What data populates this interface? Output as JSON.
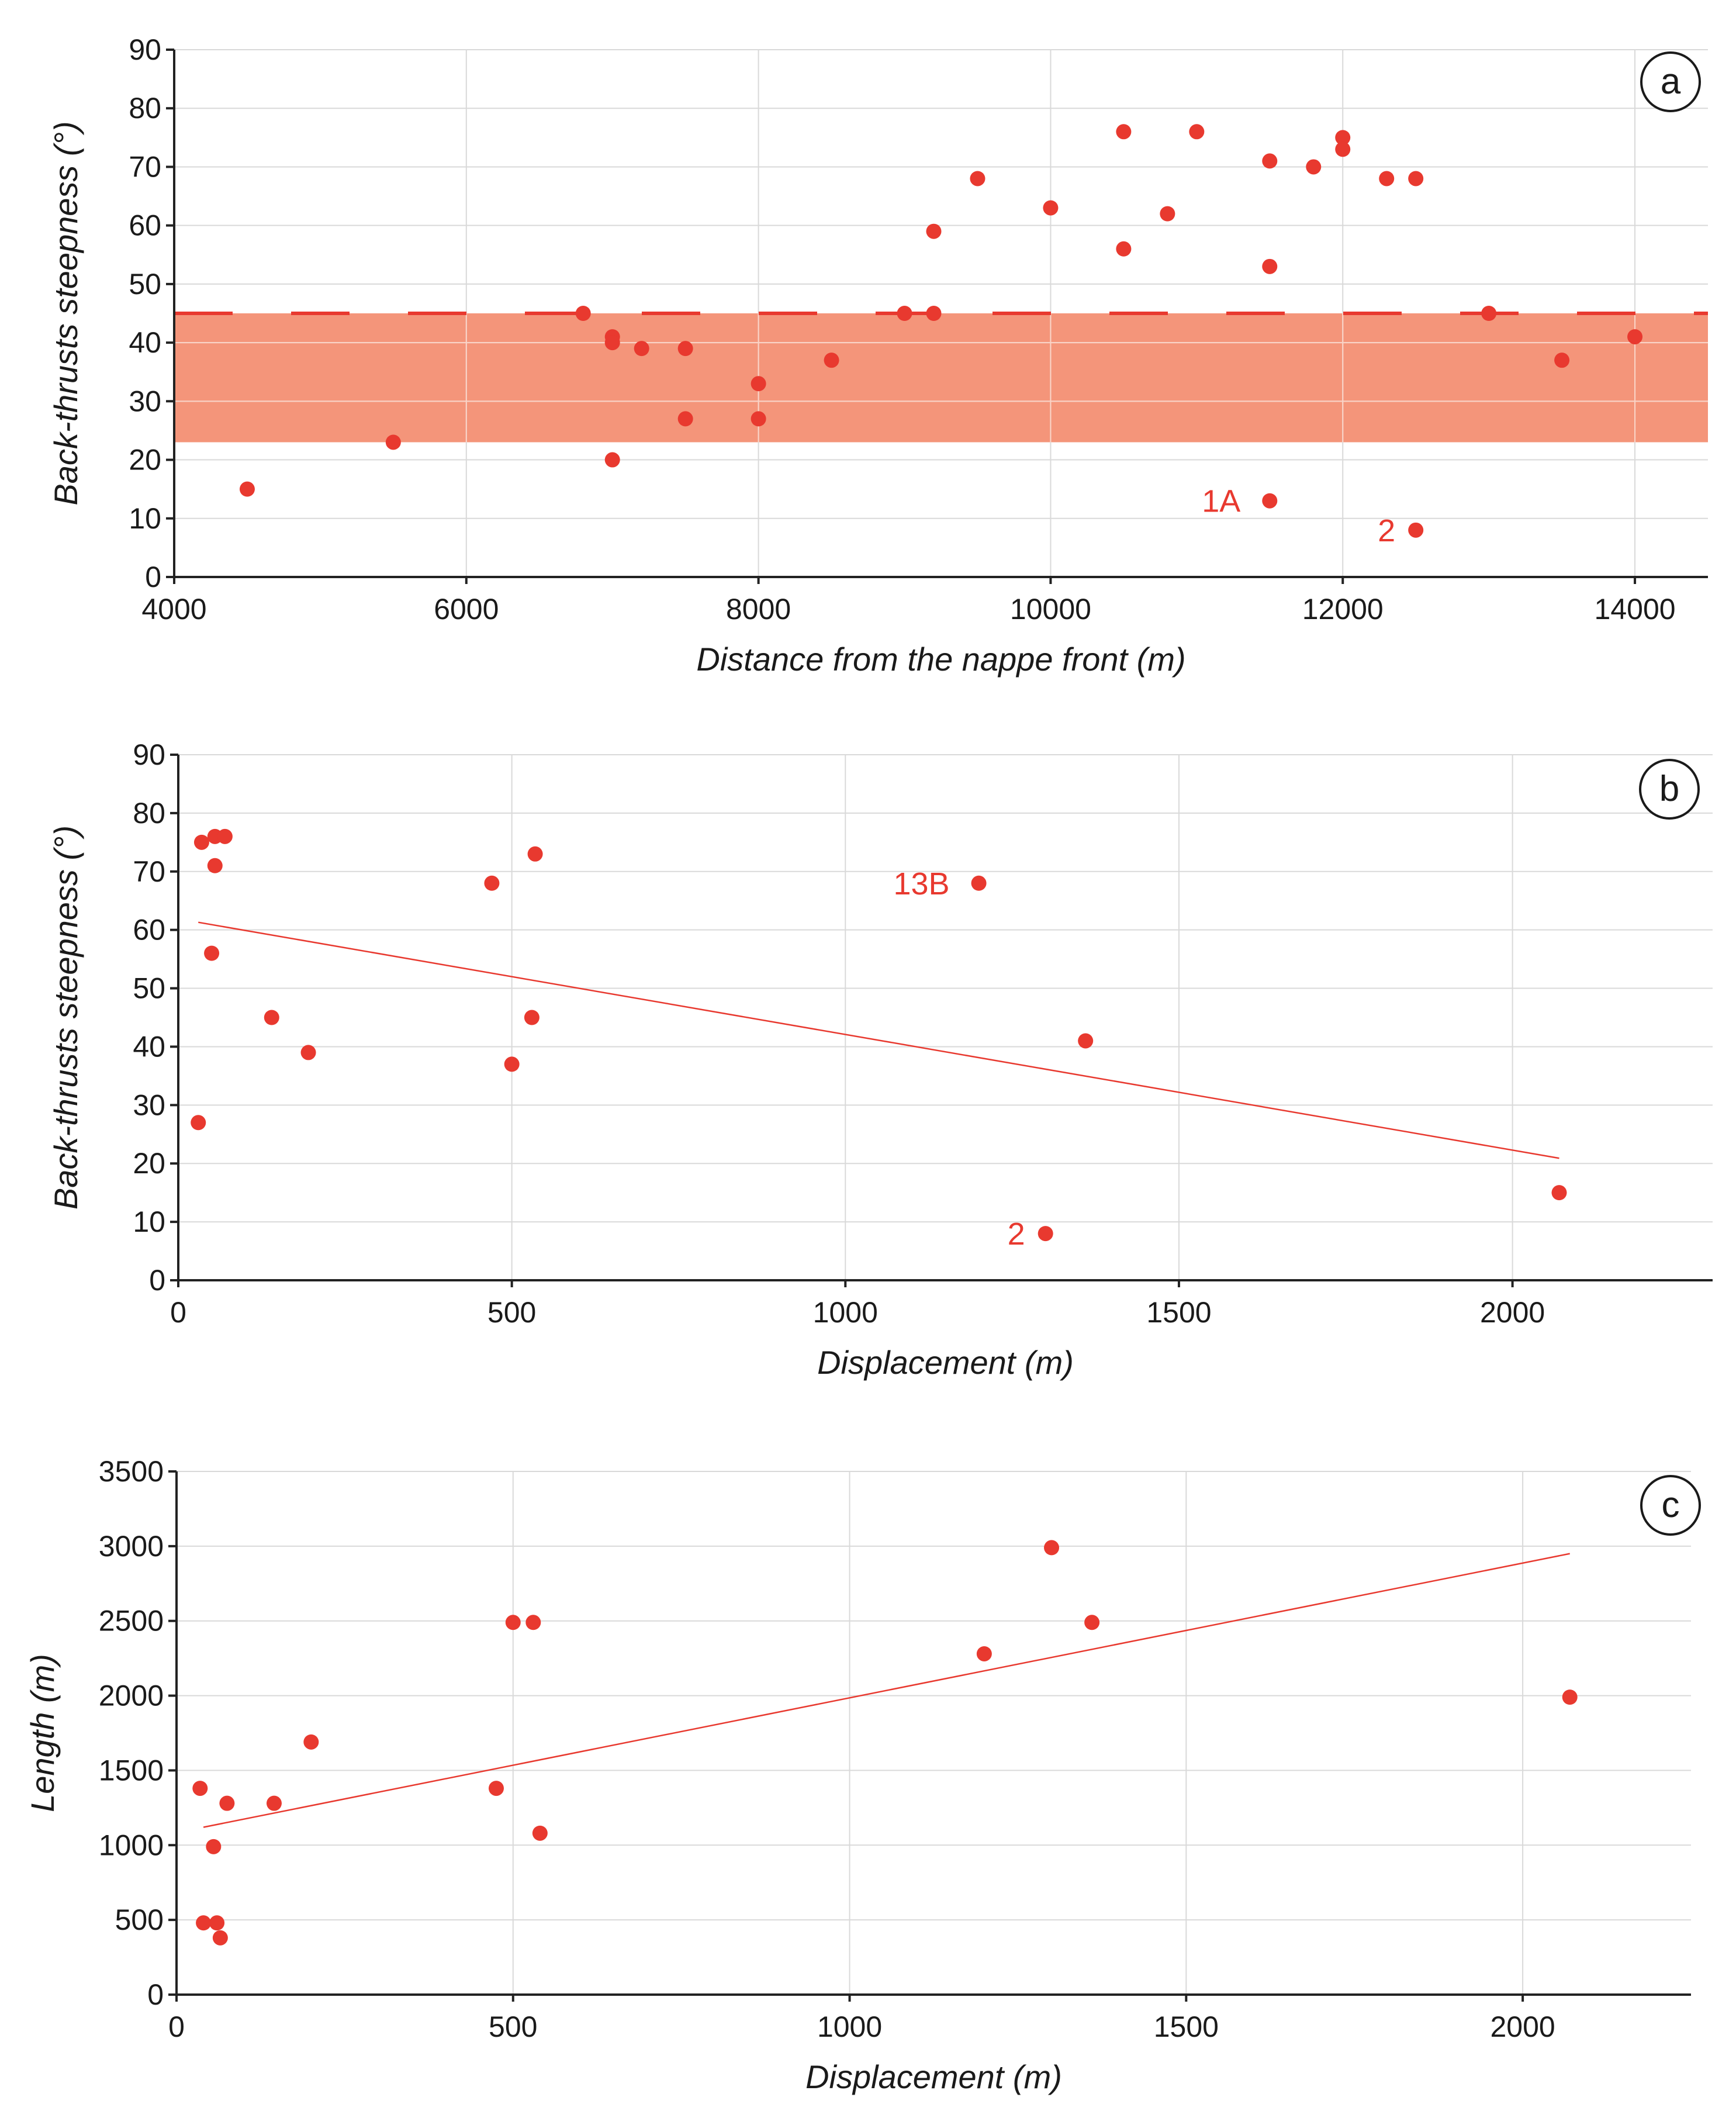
{
  "chart_data": [
    {
      "panel": "a",
      "type": "scatter",
      "xlabel": "Distance from the nappe front (m)",
      "ylabel": "Back-thrusts steepness (°)",
      "xlim": [
        4000,
        14500
      ],
      "ylim": [
        0,
        90
      ],
      "xticks": [
        4000,
        6000,
        8000,
        10000,
        12000,
        14000
      ],
      "yticks": [
        0,
        10,
        20,
        30,
        40,
        50,
        60,
        70,
        80,
        90
      ],
      "grid": true,
      "band": {
        "from": 23,
        "to": 45,
        "color": "#f4957a"
      },
      "threshold_line": {
        "y": 45,
        "style": "dashed",
        "color": "#e8392f"
      },
      "point_color": "#e8392f",
      "points": [
        [
          4500,
          15
        ],
        [
          5500,
          23
        ],
        [
          6800,
          45
        ],
        [
          7000,
          41
        ],
        [
          7000,
          40
        ],
        [
          7000,
          20
        ],
        [
          7200,
          39
        ],
        [
          7500,
          39
        ],
        [
          7500,
          27
        ],
        [
          8000,
          33
        ],
        [
          8000,
          27
        ],
        [
          8500,
          37
        ],
        [
          9000,
          45
        ],
        [
          9200,
          45
        ],
        [
          9200,
          59
        ],
        [
          9500,
          68
        ],
        [
          10000,
          63
        ],
        [
          10500,
          76
        ],
        [
          10500,
          56
        ],
        [
          10800,
          62
        ],
        [
          11000,
          76
        ],
        [
          11500,
          71
        ],
        [
          11500,
          53
        ],
        [
          11500,
          13
        ],
        [
          11800,
          70
        ],
        [
          12000,
          75
        ],
        [
          12000,
          73
        ],
        [
          12300,
          68
        ],
        [
          12500,
          68
        ],
        [
          12500,
          8
        ],
        [
          13000,
          45
        ],
        [
          13500,
          37
        ],
        [
          14000,
          41
        ]
      ],
      "annotations": [
        {
          "text": "1A",
          "x": 11500,
          "y": 13
        },
        {
          "text": "2",
          "x": 12500,
          "y": 8
        }
      ]
    },
    {
      "panel": "b",
      "type": "scatter",
      "xlabel": "Displacement (m)",
      "ylabel": "Back-thrusts steepness (°)",
      "xlim": [
        0,
        2300
      ],
      "ylim": [
        0,
        90
      ],
      "xticks": [
        0,
        500,
        1000,
        1500,
        2000
      ],
      "yticks": [
        0,
        10,
        20,
        30,
        40,
        50,
        60,
        70,
        80,
        90
      ],
      "grid": true,
      "point_color": "#e8392f",
      "points": [
        [
          30,
          27
        ],
        [
          35,
          75
        ],
        [
          50,
          56
        ],
        [
          55,
          76
        ],
        [
          55,
          71
        ],
        [
          70,
          76
        ],
        [
          140,
          45
        ],
        [
          195,
          39
        ],
        [
          470,
          68
        ],
        [
          500,
          37
        ],
        [
          530,
          45
        ],
        [
          535,
          73
        ],
        [
          1200,
          68
        ],
        [
          1300,
          8
        ],
        [
          1360,
          41
        ],
        [
          2070,
          15
        ]
      ],
      "trendline": {
        "x": [
          30,
          2070
        ],
        "y": [
          61.3,
          20.9
        ]
      },
      "annotations": [
        {
          "text": "13B",
          "x": 1200,
          "y": 68
        },
        {
          "text": "2",
          "x": 1300,
          "y": 8
        }
      ]
    },
    {
      "panel": "c",
      "type": "scatter",
      "xlabel": "Displacement (m)",
      "ylabel": "Length (m)",
      "xlim": [
        0,
        2250
      ],
      "ylim": [
        0,
        3500
      ],
      "xticks": [
        0,
        500,
        1000,
        1500,
        2000
      ],
      "yticks": [
        0,
        500,
        1000,
        1500,
        2000,
        2500,
        3000,
        3500
      ],
      "grid": true,
      "point_color": "#e8392f",
      "points": [
        [
          35,
          1380
        ],
        [
          40,
          480
        ],
        [
          55,
          990
        ],
        [
          60,
          480
        ],
        [
          65,
          380
        ],
        [
          75,
          1280
        ],
        [
          145,
          1280
        ],
        [
          200,
          1690
        ],
        [
          475,
          1380
        ],
        [
          500,
          2490
        ],
        [
          530,
          2490
        ],
        [
          540,
          1080
        ],
        [
          1200,
          2280
        ],
        [
          1300,
          2990
        ],
        [
          1360,
          2490
        ],
        [
          2070,
          1990
        ]
      ],
      "trendline": {
        "x": [
          40,
          2070
        ],
        "y": [
          1120,
          2950
        ]
      },
      "annotations": []
    }
  ]
}
